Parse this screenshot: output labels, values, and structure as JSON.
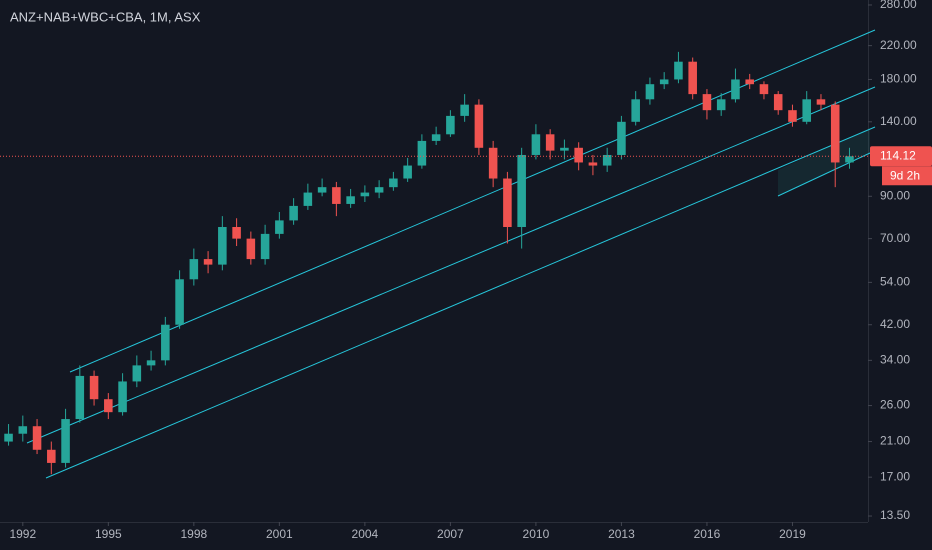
{
  "chart_data": {
    "type": "candlestick",
    "title": "ANZ+NAB+WBC+CBA, 1M, ASX",
    "x": [
      1991.5,
      1992,
      1992.5,
      1993,
      1993.5,
      1994,
      1994.5,
      1995,
      1995.5,
      1996,
      1996.5,
      1997,
      1997.5,
      1998,
      1998.5,
      1999,
      1999.5,
      2000,
      2000.5,
      2001,
      2001.5,
      2002,
      2002.5,
      2003,
      2003.5,
      2004,
      2004.5,
      2005,
      2005.5,
      2006,
      2006.5,
      2007,
      2007.5,
      2008,
      2008.5,
      2009,
      2009.5,
      2010,
      2010.5,
      2011,
      2011.5,
      2012,
      2012.5,
      2013,
      2013.5,
      2014,
      2014.5,
      2015,
      2015.5,
      2016,
      2016.5,
      2017,
      2017.5,
      2018,
      2018.5,
      2019,
      2019.5,
      2020,
      2020.5,
      2021
    ],
    "open": [
      21,
      22,
      23,
      20,
      18.5,
      24,
      31,
      27,
      25,
      30,
      33,
      34,
      42,
      55,
      62,
      60,
      75,
      70,
      62,
      72,
      78,
      85,
      92,
      95,
      86,
      90,
      92,
      95,
      100,
      108,
      125,
      130,
      145,
      155,
      120,
      100,
      75,
      115,
      130,
      118,
      120,
      110,
      108,
      115,
      140,
      160,
      175,
      180,
      200,
      165,
      150,
      160,
      180,
      175,
      165,
      150,
      140,
      160,
      155,
      110
    ],
    "high": [
      23.3,
      24.5,
      24,
      21,
      25.5,
      33,
      32,
      28,
      31.5,
      35,
      36,
      44,
      58,
      66,
      65,
      80,
      79,
      73,
      76,
      82,
      89,
      97,
      100,
      98,
      94,
      96,
      99,
      104,
      113,
      130,
      136,
      150,
      165,
      160,
      125,
      104,
      120,
      138,
      134,
      126,
      124,
      115,
      120,
      145,
      168,
      182,
      188,
      212,
      205,
      170,
      166,
      192,
      186,
      178,
      168,
      155,
      168,
      165,
      158,
      120
    ],
    "low": [
      20.5,
      21,
      19.5,
      17.3,
      18,
      23.5,
      26,
      24,
      24.5,
      29,
      32,
      33,
      41,
      53,
      57,
      58,
      67,
      60,
      60,
      70,
      76,
      83,
      90,
      80,
      84,
      87,
      89,
      93,
      98,
      106,
      122,
      128,
      140,
      115,
      95,
      68,
      66,
      112,
      112,
      112,
      105,
      102,
      104,
      112,
      137,
      155,
      170,
      176,
      160,
      142,
      145,
      157,
      170,
      160,
      146,
      136,
      138,
      150,
      95,
      106
    ],
    "close": [
      22,
      23,
      20,
      18.5,
      24,
      31,
      27,
      25,
      30,
      33,
      34,
      42,
      55,
      62,
      60,
      75,
      70,
      62,
      72,
      78,
      85,
      92,
      95,
      86,
      90,
      92,
      95,
      100,
      108,
      125,
      130,
      145,
      155,
      120,
      100,
      75,
      115,
      130,
      118,
      120,
      110,
      108,
      115,
      140,
      160,
      175,
      180,
      200,
      165,
      150,
      160,
      180,
      175,
      165,
      150,
      140,
      160,
      155,
      110,
      114.12
    ],
    "up_color": "#26a69a",
    "down_color": "#ef5350",
    "log_scale": true,
    "xlim": [
      1991.2,
      2021.65
    ],
    "xticks": [
      1992,
      1995,
      1998,
      2001,
      2004,
      2007,
      2010,
      2013,
      2016,
      2019
    ],
    "ylim": [
      13.03,
      288.4
    ],
    "yticks": [
      {
        "value": 13.5,
        "label": "13.50"
      },
      {
        "value": 17,
        "label": "17.00"
      },
      {
        "value": 21,
        "label": "21.00"
      },
      {
        "value": 26,
        "label": "26.00"
      },
      {
        "value": 34,
        "label": "34.00"
      },
      {
        "value": 42,
        "label": "42.00"
      },
      {
        "value": 54,
        "label": "54.00"
      },
      {
        "value": 70,
        "label": "70.00"
      },
      {
        "value": 90,
        "label": "90.00"
      },
      {
        "value": 140,
        "label": "140.00"
      },
      {
        "value": 180,
        "label": "180.00"
      },
      {
        "value": 220,
        "label": "220.00"
      },
      {
        "value": 280,
        "label": "280.00"
      }
    ],
    "last_price": 114.12,
    "countdown": "9d 2h"
  }
}
